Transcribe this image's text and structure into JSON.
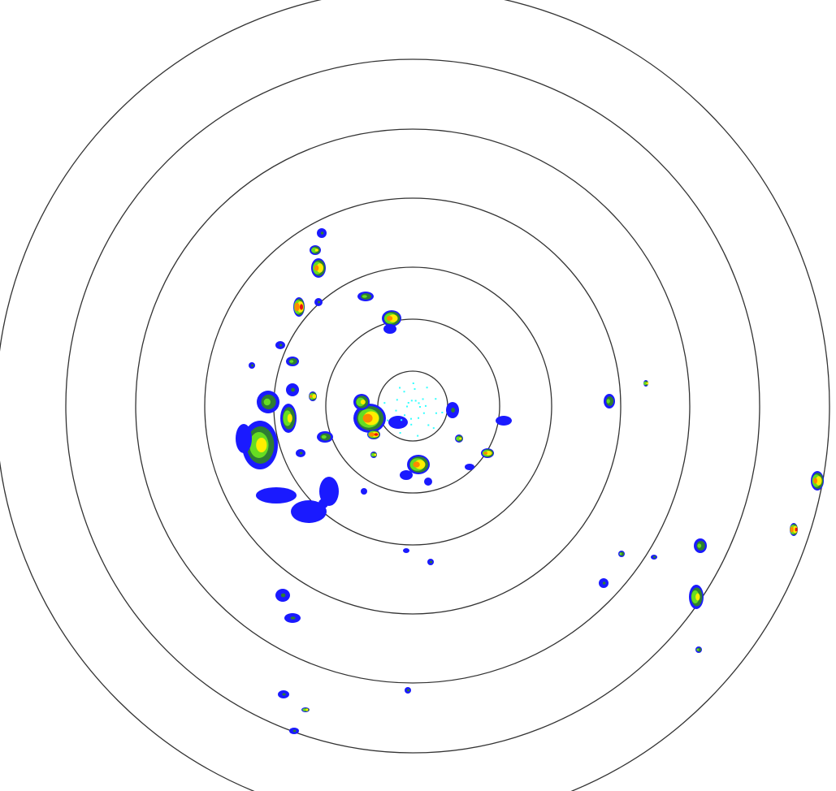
{
  "radar": {
    "ring_count": 7,
    "colors": {
      "background": "#ffffff",
      "ring": "#333333",
      "light_echo": "#1a1aff",
      "cyan_echo": "#33ffff",
      "weak_echo": "#2e7d32",
      "moderate_echo": "#66dd22",
      "yellow_echo": "#ffee00",
      "orange_echo": "#ff8800",
      "heavy_echo": "#ee1111"
    }
  }
}
